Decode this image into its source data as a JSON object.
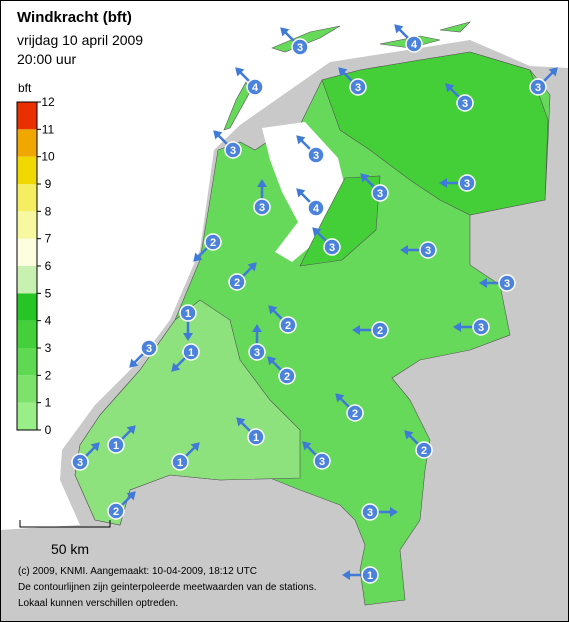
{
  "header": {
    "title": "Windkracht (bft)",
    "date": "vrijdag 10 april 2009",
    "time": "20:00 uur"
  },
  "legend": {
    "unit": "bft",
    "bands": [
      "#99ee88",
      "#7de26c",
      "#5fd852",
      "#44d03a",
      "#26c424",
      "#c8f0b0",
      "#fdfde0",
      "#f8f8a0",
      "#f4ee60",
      "#f0d800",
      "#f0a800",
      "#e83000"
    ],
    "ticks": [
      0,
      1,
      2,
      3,
      4,
      5,
      6,
      7,
      8,
      9,
      10,
      11,
      12
    ]
  },
  "stations": [
    {
      "value": 3
    },
    {
      "value": 4
    },
    {
      "value": 4
    },
    {
      "value": 3
    },
    {
      "value": 3
    },
    {
      "value": 3
    },
    {
      "value": 3
    },
    {
      "value": 3
    },
    {
      "value": 3
    },
    {
      "value": 3
    },
    {
      "value": 3
    },
    {
      "value": 4
    },
    {
      "value": 2
    },
    {
      "value": 3
    },
    {
      "value": 3
    },
    {
      "value": 2
    },
    {
      "value": 3
    },
    {
      "value": 2
    },
    {
      "value": 1
    },
    {
      "value": 2
    },
    {
      "value": 3
    },
    {
      "value": 3
    },
    {
      "value": 3
    },
    {
      "value": 1
    },
    {
      "value": 2
    },
    {
      "value": 2
    },
    {
      "value": 1
    },
    {
      "value": 2
    },
    {
      "value": 1
    },
    {
      "value": 3
    },
    {
      "value": 1
    },
    {
      "value": 3
    },
    {
      "value": 2
    },
    {
      "value": 3
    },
    {
      "value": 1
    }
  ],
  "scale_bar": {
    "label": "50 km"
  },
  "footer": {
    "lines": [
      "(c) 2009, KNMI. Aangemaakt: 10-04-2009, 18:12 UTC",
      "De contourlijnen zijn geinterpoleerde meetwaarden van de stations.",
      "Lokaal kunnen verschillen optreden."
    ]
  }
}
